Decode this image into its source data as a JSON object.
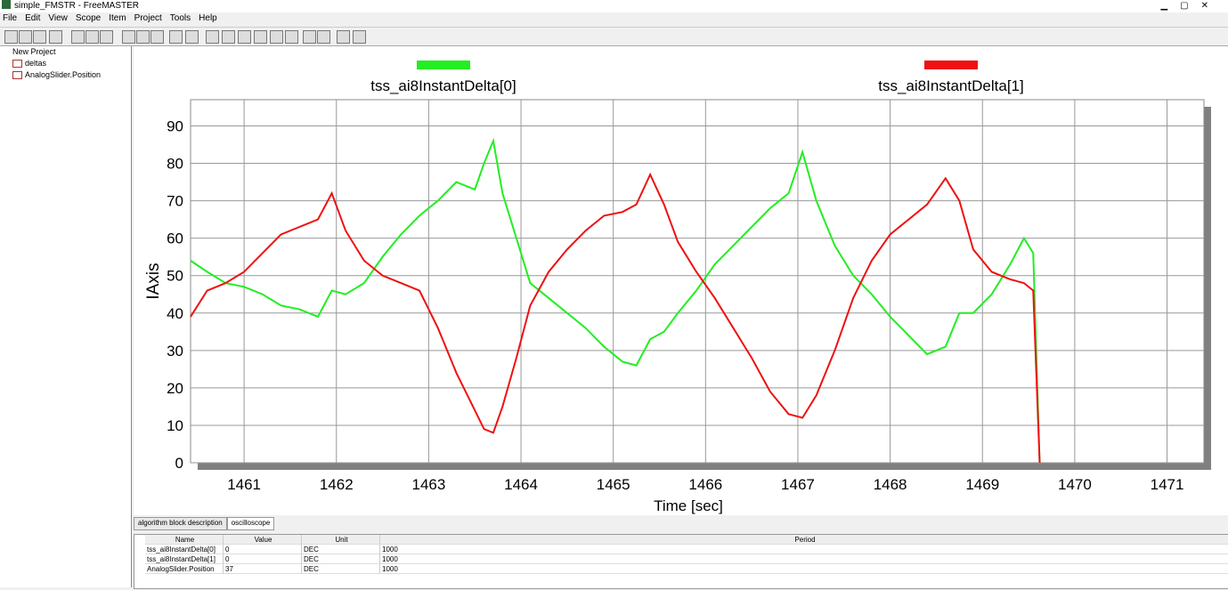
{
  "window": {
    "title": "simple_FMSTR - FreeMASTER",
    "menu": [
      "File",
      "Edit",
      "View",
      "Scope",
      "Item",
      "Project",
      "Tools",
      "Help"
    ]
  },
  "tree": {
    "root": "New Project",
    "items": [
      "deltas",
      "AnalogSlider.Position"
    ]
  },
  "tabs": [
    "algorithm block description",
    "oscilloscope"
  ],
  "table": {
    "columns": [
      "Name",
      "Value",
      "Unit",
      "Period"
    ],
    "rows": [
      [
        "tss_ai8InstantDelta[0]",
        0,
        "DEC",
        1000
      ],
      [
        "tss_ai8InstantDelta[1]",
        0,
        "DEC",
        1000
      ],
      [
        "AnalogSlider.Position",
        37,
        "DEC",
        1000
      ]
    ]
  },
  "chart_data": {
    "type": "line",
    "x_label": "Time [sec]",
    "y_label": "IAxis",
    "x": [
      1460.42,
      1460.6,
      1460.8,
      1461.0,
      1461.2,
      1461.4,
      1461.6,
      1461.8,
      1461.95,
      1462.1,
      1462.3,
      1462.5,
      1462.7,
      1462.9,
      1463.1,
      1463.3,
      1463.5,
      1463.6,
      1463.7,
      1463.8,
      1463.95,
      1464.1,
      1464.3,
      1464.5,
      1464.7,
      1464.9,
      1465.1,
      1465.25,
      1465.4,
      1465.55,
      1465.7,
      1465.9,
      1466.1,
      1466.3,
      1466.5,
      1466.7,
      1466.9,
      1467.05,
      1467.2,
      1467.4,
      1467.6,
      1467.8,
      1468.0,
      1468.2,
      1468.4,
      1468.6,
      1468.75,
      1468.9,
      1469.1,
      1469.3,
      1469.45,
      1469.55,
      1469.62
    ],
    "series": [
      {
        "name": "tss_ai8InstantDelta[0]",
        "color": "#22ee22",
        "values": [
          54,
          51,
          48,
          47,
          45,
          42,
          41,
          39,
          46,
          45,
          48,
          55,
          61,
          66,
          70,
          75,
          73,
          80,
          86,
          72,
          60,
          48,
          44,
          40,
          36,
          31,
          27,
          26,
          33,
          35,
          40,
          46,
          53,
          58,
          63,
          68,
          72,
          83,
          70,
          58,
          50,
          45,
          39,
          34,
          29,
          31,
          40,
          40,
          45,
          53,
          60,
          56,
          0
        ]
      },
      {
        "name": "tss_ai8InstantDelta[1]",
        "color": "#ee1111",
        "values": [
          39,
          46,
          48,
          51,
          56,
          61,
          63,
          65,
          72,
          62,
          54,
          50,
          48,
          46,
          36,
          24,
          14,
          9,
          8,
          15,
          28,
          42,
          51,
          57,
          62,
          66,
          67,
          69,
          77,
          69,
          59,
          51,
          44,
          36,
          28,
          19,
          13,
          12,
          18,
          30,
          44,
          54,
          61,
          65,
          69,
          76,
          70,
          57,
          51,
          49,
          48,
          46,
          0
        ]
      }
    ],
    "xlim": [
      1460.42,
      1471.4
    ],
    "ylim": [
      0,
      97
    ],
    "xticks": [
      1461,
      1462,
      1463,
      1464,
      1465,
      1466,
      1467,
      1468,
      1469,
      1470,
      1471
    ],
    "yticks": [
      0,
      10,
      20,
      30,
      40,
      50,
      60,
      70,
      80,
      90
    ],
    "grid": true
  }
}
